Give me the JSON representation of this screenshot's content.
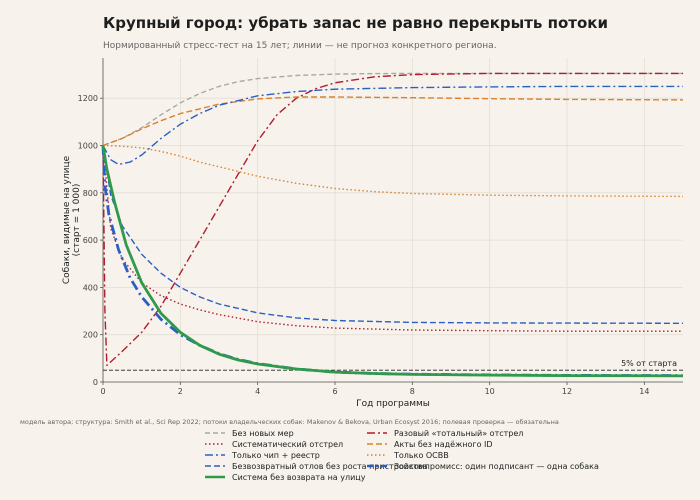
{
  "title": "Крупный город: убрать запас не равно перекрыть потоки",
  "subtitle": "Нормированный стресс-тест на 15 лет; линии — не прогноз конкретного региона.",
  "footnote": "модель автора; структура: Smith et al., Sci Rep 2022; потоки владельческих собак: Makenov & Bekova, Urban Ecosyst 2016; полевая проверка — обязательна",
  "chart_data": {
    "type": "line",
    "xlabel": "Год программы",
    "ylabel": [
      "Собаки, видимые на улице",
      "(старт = 1 000)"
    ],
    "xlim": [
      0,
      15
    ],
    "ylim": [
      0,
      1370
    ],
    "xticks": [
      0,
      2,
      4,
      6,
      8,
      10,
      12,
      14
    ],
    "yticks": [
      0,
      200,
      400,
      600,
      800,
      1000,
      1200
    ],
    "grid": true,
    "legend_position": "bottom",
    "reference_line": {
      "y": 50,
      "label": "5% от старта"
    },
    "series": [
      {
        "name": "Без новых мер",
        "color": "#a8a8a8",
        "dash": "5,3",
        "width": 1.4,
        "x": [
          0,
          0.5,
          1,
          1.5,
          2,
          2.5,
          3,
          3.5,
          4,
          5,
          6,
          7,
          8,
          10,
          12,
          15
        ],
        "y": [
          1000,
          1030,
          1075,
          1130,
          1180,
          1220,
          1250,
          1270,
          1283,
          1296,
          1302,
          1304,
          1305,
          1305,
          1305,
          1305
        ]
      },
      {
        "name": "Разовый «тотальный» отстрел",
        "color": "#b01c2e",
        "dash": "8,3,2,3",
        "width": 1.4,
        "x": [
          0,
          0.05,
          0.1,
          0.5,
          1,
          1.5,
          2,
          2.5,
          3,
          3.5,
          4,
          4.5,
          5,
          5.5,
          6,
          7,
          8,
          10,
          12,
          15
        ],
        "y": [
          1000,
          300,
          70,
          130,
          210,
          320,
          460,
          600,
          740,
          880,
          1020,
          1130,
          1200,
          1240,
          1265,
          1290,
          1300,
          1305,
          1305,
          1305
        ]
      },
      {
        "name": "Систематический отстрел",
        "color": "#b01c2e",
        "dash": "1.5,2.5",
        "width": 1.4,
        "x": [
          0,
          0.2,
          0.5,
          1,
          1.5,
          2,
          2.5,
          3,
          4,
          5,
          6,
          8,
          10,
          12,
          15
        ],
        "y": [
          1000,
          650,
          520,
          420,
          365,
          330,
          305,
          285,
          255,
          238,
          228,
          220,
          217,
          215,
          215
        ]
      },
      {
        "name": "Акты без надёжного ID",
        "color": "#d9822b",
        "dash": "6,3",
        "width": 1.4,
        "x": [
          0,
          0.5,
          1,
          1.5,
          2,
          3,
          4,
          5,
          6,
          8,
          10,
          12,
          15
        ],
        "y": [
          1000,
          1030,
          1070,
          1105,
          1135,
          1175,
          1197,
          1205,
          1205,
          1202,
          1198,
          1195,
          1193
        ]
      },
      {
        "name": "Только чип + реестр",
        "color": "#2b5fc4",
        "dash": "8,3,2,3",
        "width": 1.4,
        "x": [
          0,
          0.2,
          0.4,
          0.7,
          1,
          1.5,
          2,
          2.5,
          3,
          4,
          5,
          6,
          8,
          10,
          12,
          15
        ],
        "y": [
          1000,
          940,
          920,
          930,
          960,
          1030,
          1090,
          1135,
          1170,
          1210,
          1228,
          1238,
          1245,
          1248,
          1250,
          1250
        ]
      },
      {
        "name": "Только ОСВВ",
        "color": "#d9822b",
        "dash": "1.5,2.5",
        "width": 1.4,
        "x": [
          0,
          0.5,
          1,
          1.5,
          2,
          2.5,
          3,
          3.5,
          4,
          5,
          6,
          7,
          8,
          10,
          12,
          15
        ],
        "y": [
          1000,
          997,
          990,
          975,
          955,
          930,
          910,
          890,
          870,
          840,
          818,
          805,
          797,
          790,
          787,
          785
        ]
      },
      {
        "name": "Безвозвратный отлов без роста пристройства",
        "color": "#2b5fc4",
        "dash": "6,3",
        "width": 1.4,
        "x": [
          0,
          0.2,
          0.5,
          1,
          1.5,
          2,
          2.5,
          3,
          4,
          5,
          6,
          8,
          10,
          12,
          15
        ],
        "y": [
          1000,
          790,
          660,
          540,
          460,
          400,
          360,
          330,
          292,
          271,
          260,
          252,
          250,
          249,
          248
        ]
      },
      {
        "name": "Зоокомпромисс: один подписант — одна собака",
        "color": "#2b5fc4",
        "dash": "10,4,2,4",
        "width": 2.8,
        "x": [
          0,
          0.05,
          0.15,
          0.4,
          0.7,
          1,
          1.5,
          2,
          2.5,
          3,
          3.5,
          4,
          5,
          6,
          7,
          8,
          10,
          12,
          15
        ],
        "y": [
          1000,
          830,
          710,
          560,
          440,
          360,
          265,
          200,
          155,
          120,
          95,
          78,
          55,
          42,
          36,
          33,
          30,
          28,
          27
        ]
      },
      {
        "name": "Система без возврата на улицу",
        "color": "#2e9a4a",
        "dash": "",
        "width": 2.8,
        "x": [
          0,
          0.1,
          0.3,
          0.6,
          1,
          1.5,
          2,
          2.5,
          3,
          3.5,
          4,
          5,
          6,
          7,
          8,
          10,
          12,
          15
        ],
        "y": [
          1000,
          900,
          760,
          580,
          420,
          290,
          210,
          155,
          118,
          93,
          76,
          55,
          42,
          36,
          32,
          29,
          27,
          26
        ]
      }
    ]
  }
}
